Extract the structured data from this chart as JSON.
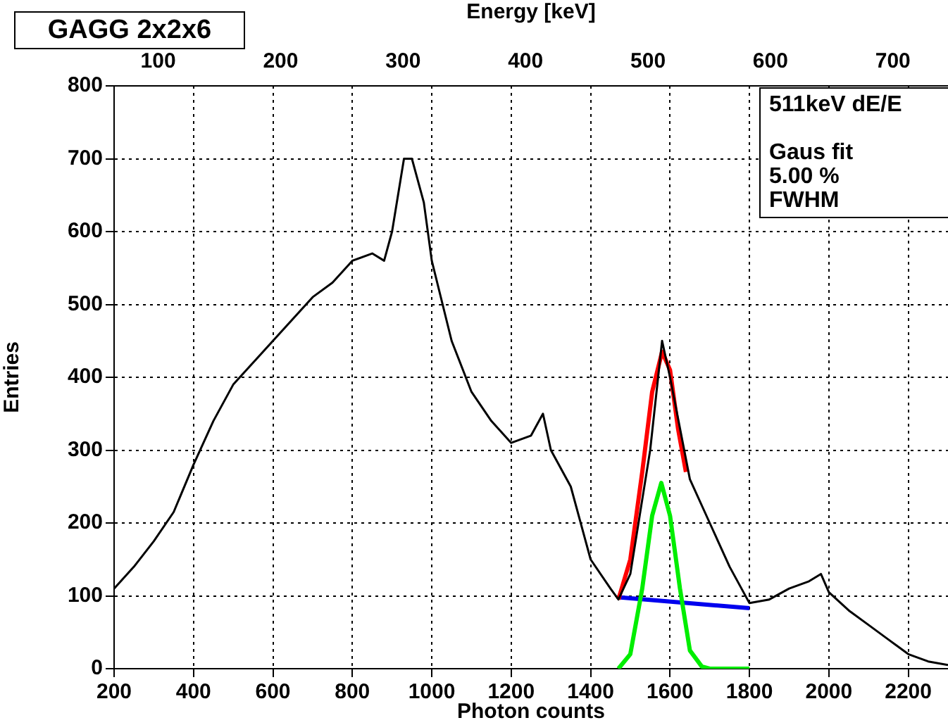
{
  "chart_data": {
    "type": "line",
    "title": "GAGG 2x2x6",
    "xlabel": "Photon counts",
    "ylabel": "Entries",
    "x2label": "Energy [keV]",
    "xlim": [
      200,
      2300
    ],
    "xticks": [
      200,
      400,
      600,
      800,
      1000,
      1200,
      1400,
      1600,
      1800,
      2000,
      2200
    ],
    "x2lim": [
      64,
      745
    ],
    "x2ticks": [
      100,
      200,
      300,
      400,
      500,
      600,
      700
    ],
    "ylim": [
      0,
      800
    ],
    "yticks": [
      0,
      100,
      200,
      300,
      400,
      500,
      600,
      700,
      800
    ],
    "grid": true,
    "legend": false,
    "marker": "none",
    "line_style": "solid",
    "annotations": [
      "511keV dE/E",
      "Gaus fit",
      "5.00 %",
      "FWHM"
    ],
    "series": [
      {
        "color": "#000000",
        "x": [
          200,
          250,
          300,
          350,
          400,
          450,
          500,
          550,
          600,
          650,
          700,
          750,
          800,
          850,
          880,
          900,
          930,
          950,
          980,
          1000,
          1050,
          1100,
          1150,
          1200,
          1250,
          1280,
          1300,
          1350,
          1400,
          1450,
          1470,
          1500,
          1550,
          1580,
          1600,
          1650,
          1700,
          1750,
          1800,
          1850,
          1900,
          1950,
          1980,
          2000,
          2050,
          2100,
          2150,
          2200,
          2250,
          2300
        ],
        "values": [
          110,
          140,
          175,
          215,
          280,
          340,
          390,
          420,
          450,
          480,
          510,
          530,
          560,
          570,
          560,
          600,
          700,
          700,
          640,
          560,
          450,
          380,
          340,
          310,
          320,
          350,
          300,
          250,
          150,
          110,
          95,
          130,
          300,
          450,
          400,
          260,
          200,
          140,
          90,
          95,
          110,
          120,
          130,
          105,
          80,
          60,
          40,
          20,
          10,
          5
        ]
      },
      {
        "color": "#ff0000",
        "x": [
          1470,
          1500,
          1530,
          1555,
          1580,
          1600,
          1620,
          1640
        ],
        "values": [
          95,
          150,
          270,
          380,
          435,
          410,
          330,
          270
        ]
      },
      {
        "color": "#00ee00",
        "x": [
          1470,
          1500,
          1530,
          1555,
          1578,
          1600,
          1625,
          1650,
          1680,
          1700,
          1800
        ],
        "values": [
          0,
          20,
          110,
          210,
          255,
          210,
          110,
          25,
          3,
          0,
          0
        ]
      },
      {
        "color": "#0000ee",
        "x": [
          1470,
          1800
        ],
        "values": [
          98,
          83
        ]
      }
    ]
  }
}
